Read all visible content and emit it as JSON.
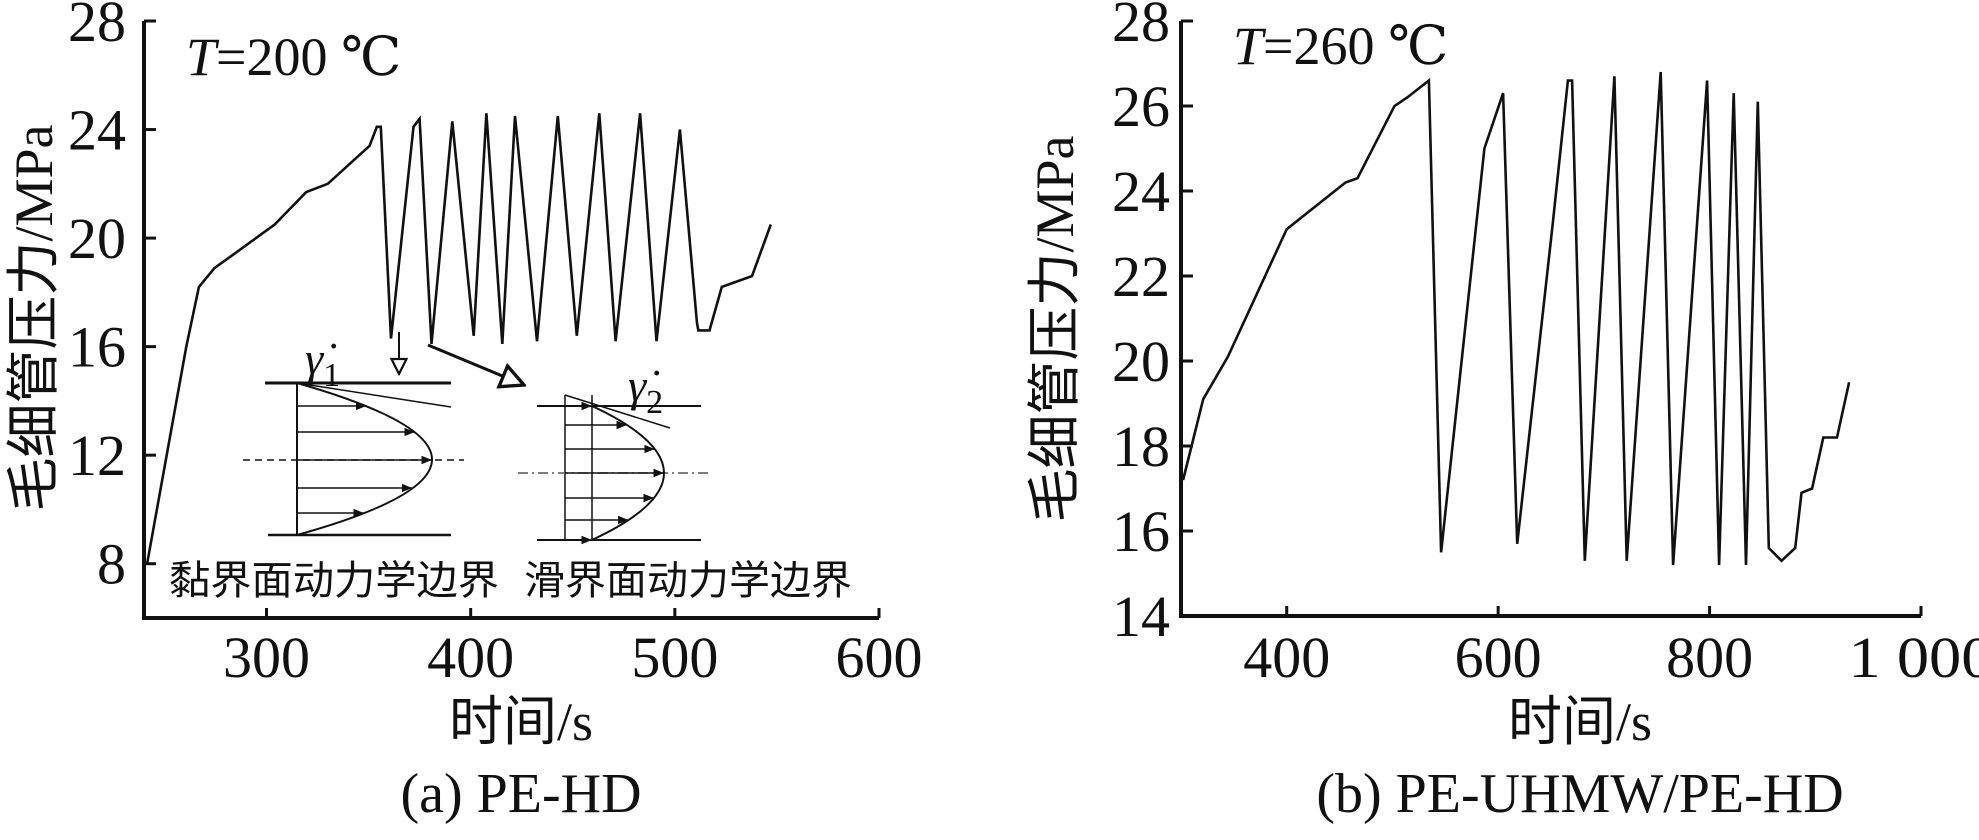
{
  "chart_data": [
    {
      "type": "line",
      "panel_caption": "(a) PE-HD",
      "annotation": "T=200 ℃",
      "annotation_var": "T",
      "annotation_rest": "=200 ℃",
      "xlabel": "时间/s",
      "ylabel": "毛细管压力/MPa",
      "xlim": [
        240,
        600
      ],
      "ylim": [
        6,
        28
      ],
      "xticks": [
        300,
        400,
        500,
        600
      ],
      "xtick_labels": [
        "300",
        "400",
        "500",
        "600"
      ],
      "yticks": [
        8,
        12,
        16,
        20,
        24,
        28
      ],
      "ytick_labels": [
        "8",
        "12",
        "16",
        "20",
        "24",
        "28"
      ],
      "grid": false,
      "series": [
        {
          "name": "PE-HD",
          "x": [
            241.5,
            260.7,
            266.9,
            274.6,
            282,
            304,
            319.5,
            330,
            350.5,
            354,
            356,
            361,
            372,
            375,
            380.8,
            391,
            401.5,
            407.7,
            415.5,
            421.7,
            432.5,
            442.7,
            452,
            463,
            471,
            483,
            491,
            502.5,
            510.8,
            511.5,
            517,
            523,
            537.8,
            547
          ],
          "y": [
            8,
            16,
            18.2,
            18.9,
            19.3,
            20.5,
            21.7,
            22,
            23.4,
            24.1,
            24.1,
            16.3,
            24.1,
            24.4,
            16.1,
            24.3,
            16.4,
            24.6,
            16.1,
            24.5,
            16.2,
            24.5,
            16.4,
            24.6,
            16.2,
            24.6,
            16.2,
            24,
            16.9,
            16.6,
            16.6,
            18.2,
            18.6,
            20.5
          ]
        }
      ],
      "insets": [
        {
          "symbol": "γ̇",
          "sub": "1",
          "caption": "黏界面动力学边界"
        },
        {
          "symbol": "γ̇",
          "sub": "2",
          "caption": "滑界面动力学边界"
        }
      ]
    },
    {
      "type": "line",
      "panel_caption": "(b) PE-UHMW/PE-HD",
      "annotation": "T=260 ℃",
      "annotation_var": "T",
      "annotation_rest": "=260 ℃",
      "xlabel": "时间/s",
      "ylabel": "毛细管压力/MPa",
      "xlim": [
        300,
        1000
      ],
      "ylim": [
        14,
        28
      ],
      "xticks": [
        400,
        600,
        800,
        1000
      ],
      "xtick_labels": [
        "400",
        "600",
        "800",
        "1 000"
      ],
      "yticks": [
        14,
        16,
        18,
        20,
        22,
        24,
        26,
        28
      ],
      "ytick_labels": [
        "14",
        "16",
        "18",
        "20",
        "22",
        "24",
        "26",
        "28"
      ],
      "grid": false,
      "series": [
        {
          "name": "PE-UHMW/PE-HD",
          "x": [
            302,
            321,
            344.4,
            400,
            455.6,
            467,
            502,
            514,
            534.5,
            546,
            587,
            604.7,
            618,
            651.5,
            666,
            670,
            682,
            710,
            721.6,
            753.8,
            765.5,
            797.7,
            809,
            822.8,
            834.5,
            845.6,
            856,
            868,
            881,
            887,
            897,
            907.6,
            920.5,
            932
          ],
          "y": [
            17.2,
            19.1,
            20.1,
            23.1,
            24.2,
            24.3,
            26.0,
            26.2,
            26.6,
            15.5,
            25.0,
            26.3,
            15.7,
            23.2,
            26.6,
            26.6,
            15.3,
            26.7,
            15.3,
            26.8,
            15.2,
            26.6,
            15.2,
            26.3,
            15.2,
            26.1,
            15.6,
            15.3,
            15.6,
            16.9,
            17.0,
            18.2,
            18.2,
            19.5
          ]
        }
      ]
    }
  ]
}
